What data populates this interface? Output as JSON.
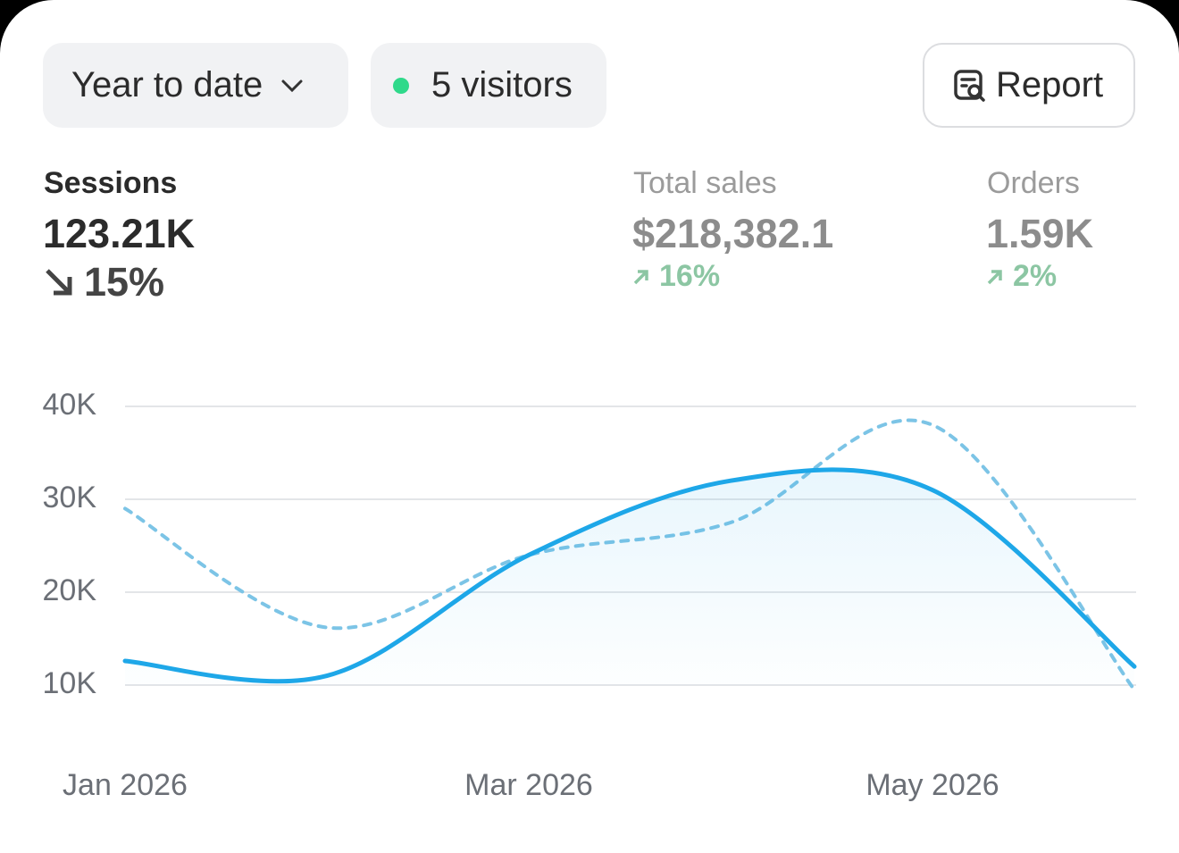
{
  "controls": {
    "range": "Year to date",
    "visitors": "5 visitors",
    "report": "Report"
  },
  "metrics": [
    {
      "label": "Sessions",
      "value": "123.21K",
      "change": "15%"
    },
    {
      "label": "Total sales",
      "value": "$218,382.1",
      "change": "16%"
    },
    {
      "label": "Orders",
      "value": "1.59K",
      "change": "2%"
    }
  ],
  "chart_data": {
    "type": "line",
    "categories": [
      "Jan 2026",
      null,
      "Mar 2026",
      null,
      "May 2026",
      null
    ],
    "series": [
      {
        "color": "#1ea7e8",
        "style": "solid",
        "values": [
          12600,
          11000,
          24000,
          32000,
          31000,
          12000
        ]
      },
      {
        "color": "#7cc4e6",
        "style": "dashed",
        "values": [
          29000,
          16200,
          24000,
          27500,
          38000,
          9500
        ]
      }
    ],
    "ylim": [
      4000,
      45000
    ],
    "yticks": [
      {
        "value": 10000,
        "label": "10K"
      },
      {
        "value": 20000,
        "label": "20K"
      },
      {
        "value": 30000,
        "label": "30K"
      },
      {
        "value": 40000,
        "label": "40K"
      }
    ],
    "grid": true
  }
}
